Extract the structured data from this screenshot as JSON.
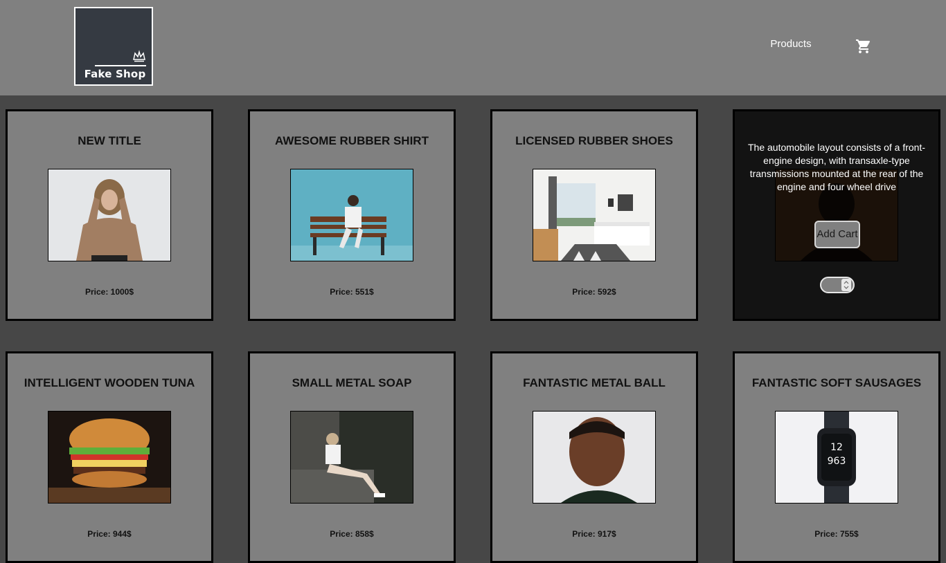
{
  "header": {
    "logo_text": "Fake Shop",
    "nav_products": "Products",
    "cart_icon": "shopping-cart-icon"
  },
  "products": [
    {
      "title": "New Title",
      "price": "Price: 1000$",
      "image": "woman-sweater-photo"
    },
    {
      "title": "Awesome Rubber Shirt",
      "price": "Price: 551$",
      "image": "person-bench-photo"
    },
    {
      "title": "Licensed Rubber Shoes",
      "price": "Price: 592$",
      "image": "bedroom-photo"
    },
    {
      "title": "",
      "price": "",
      "image": "portrait-photo",
      "hover": {
        "description": "The automobile layout consists of a front-engine design, with transaxle-type transmissions mounted at the rear of the engine and four wheel drive",
        "button": "Add Cart"
      }
    },
    {
      "title": "Intelligent Wooden Tuna",
      "price": "Price: 944$",
      "image": "burger-photo"
    },
    {
      "title": "Small Metal Soap",
      "price": "Price: 858$",
      "image": "woman-sitting-photo"
    },
    {
      "title": "Fantastic Metal Ball",
      "price": "Price: 917$",
      "image": "man-portrait-photo"
    },
    {
      "title": "Fantastic Soft Sausages",
      "price": "Price: 755$",
      "image": "smartwatch-photo"
    }
  ],
  "colors": {
    "page_bg": "#474747",
    "header_bg": "#808080",
    "card_bg": "#808080",
    "logo_bg": "#353a42"
  }
}
